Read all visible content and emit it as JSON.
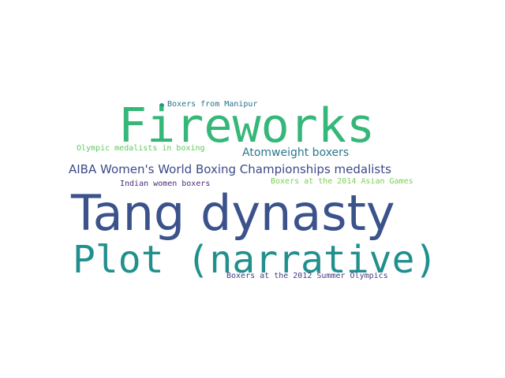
{
  "words": {
    "fireworks": {
      "text": "Fireworks",
      "color": "#35b779"
    },
    "tang_dynasty": {
      "text": "Tang dynasty",
      "color": "#3b528b"
    },
    "plot_narrative": {
      "text": "Plot (narrative)",
      "color": "#21908d"
    },
    "aiba": {
      "text": "AIBA Women's World Boxing Championships medalists",
      "color": "#3e4989"
    },
    "atomweight": {
      "text": "Atomweight boxers",
      "color": "#2a788e"
    },
    "boxers_manipur": {
      "text": "Boxers from Manipur",
      "color": "#2c728e"
    },
    "olympic_medalists": {
      "text": "Olympic medalists in boxing",
      "color": "#5ec962"
    },
    "indian_women": {
      "text": "Indian women boxers",
      "color": "#472d7b"
    },
    "asian_games": {
      "text": "Boxers at the 2014 Asian Games",
      "color": "#7ad151"
    },
    "olympics_2012": {
      "text": "Boxers at the 2012 Summer Olympics",
      "color": "#443983"
    }
  },
  "dot_color": "#21908d"
}
